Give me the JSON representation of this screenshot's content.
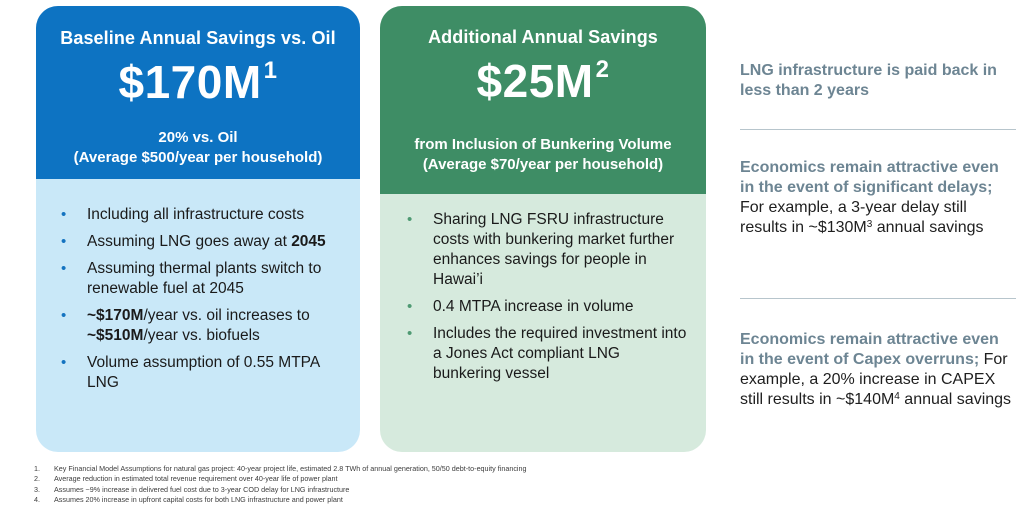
{
  "baseline": {
    "title": "Baseline Annual Savings vs. Oil",
    "amount": "$170M",
    "amount_sup": "1",
    "sub1": "20% vs. Oil",
    "sub2": "(Average $500/year per household)",
    "bullets": [
      {
        "pre": "Including all infrastructure costs",
        "bold": "",
        "post": ""
      },
      {
        "pre": "Assuming LNG goes away at ",
        "bold": "2045",
        "post": ""
      },
      {
        "pre": "Assuming thermal plants switch to renewable fuel at 2045",
        "bold": "",
        "post": ""
      },
      {
        "pre": "",
        "bold": "~$170M",
        "post": "/year vs. oil increases to "
      },
      {
        "pre": "Volume assumption of 0.55 MTPA LNG",
        "bold": "",
        "post": ""
      }
    ],
    "bullet4_bold2": "~$510M",
    "bullet4_post2": "/year vs. biofuels"
  },
  "additional": {
    "title": "Additional Annual Savings",
    "amount": "$25M",
    "amount_sup": "2",
    "sub1": "from Inclusion of Bunkering Volume",
    "sub2": "(Average $70/year per household)",
    "bullets": [
      "Sharing LNG FSRU infrastructure costs with bunkering market further enhances savings for people in Hawai’i",
      "0.4 MTPA increase in volume",
      "Includes the required investment into a Jones Act compliant LNG bunkering vessel"
    ]
  },
  "side": {
    "point1": "LNG infrastructure is paid back in less than 2 years",
    "point2_em": "Economics remain attractive even in the event of significant delays;",
    "point2_text": " For example, a 3-year delay still results in ~$130M",
    "point2_sup": "3",
    "point2_tail": " annual savings",
    "point3_em": "Economics remain attractive even in the event of Capex overruns;",
    "point3_text": " For example, a 20% increase in CAPEX still results in ~$140M",
    "point3_sup": "4",
    "point3_tail": " annual savings"
  },
  "bullet_glyph": "•",
  "footnotes": [
    {
      "num": "1.",
      "text": "Key Financial Model Assumptions for natural gas project: 40-year project life, estimated 2.8 TWh of annual generation, 50/50 debt-to-equity financing"
    },
    {
      "num": "2.",
      "text": "Average reduction in estimated total revenue requirement over 40-year life of power plant"
    },
    {
      "num": "3.",
      "text": "Assumes ~9% increase in delivered fuel cost due to 3-year COD delay for LNG infrastructure"
    },
    {
      "num": "4.",
      "text": "Assumes 20% increase in upfront capital costs for both LNG infrastructure and power plant"
    }
  ],
  "colors": {
    "blue_header": "#0d73c2",
    "blue_body": "#c9e8f8",
    "green_header": "#3e8d65",
    "green_body": "#d6eadd",
    "side_emphasis": "#6d8593"
  }
}
